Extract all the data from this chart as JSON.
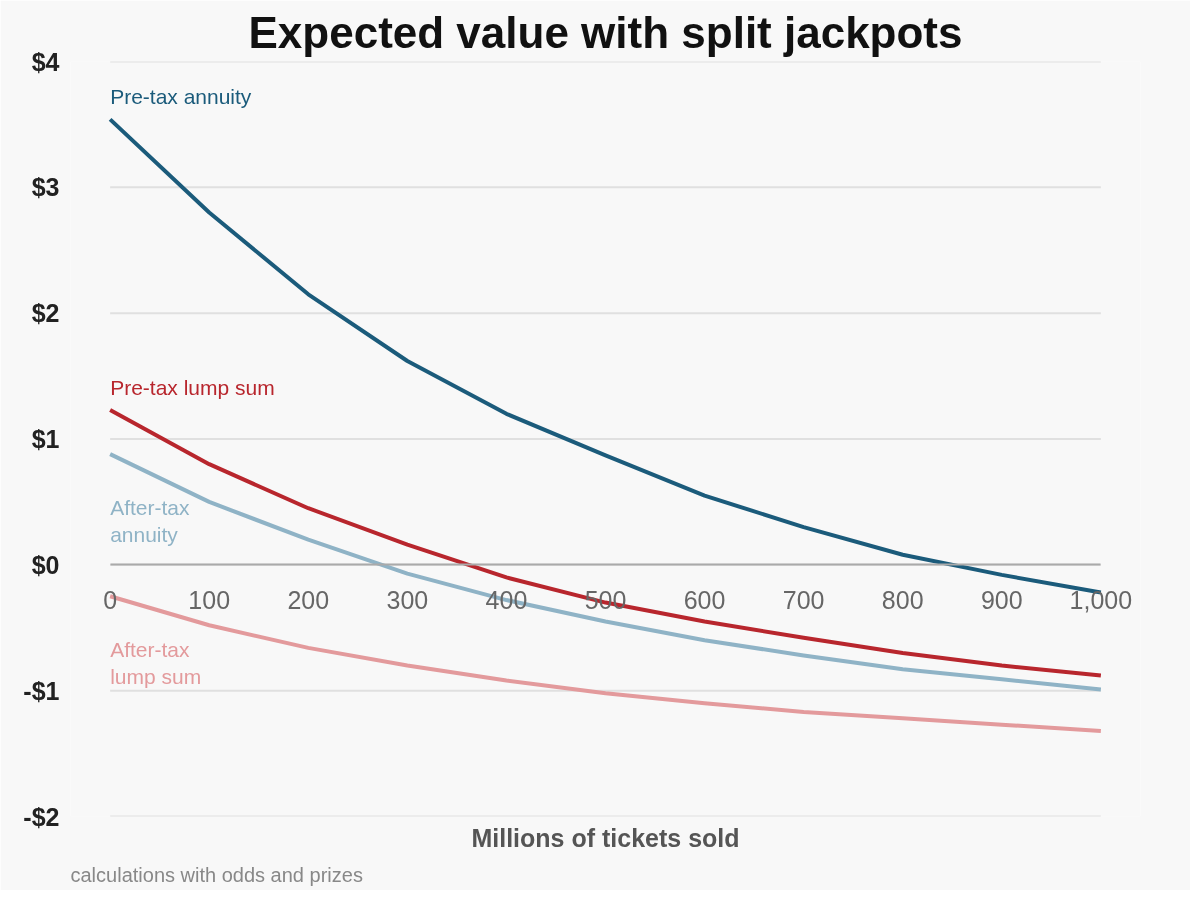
{
  "chart_data": {
    "type": "line",
    "title": "Expected value with split jackpots",
    "xlabel": "Millions of tickets sold",
    "x": [
      0,
      100,
      200,
      300,
      400,
      500,
      600,
      700,
      800,
      900,
      1000
    ],
    "series": [
      {
        "name": "Pre-tax annuity",
        "color": "#1b5b7b",
        "values": [
          3.54,
          2.8,
          2.15,
          1.62,
          1.2,
          0.87,
          0.55,
          0.3,
          0.08,
          -0.08,
          -0.22
        ]
      },
      {
        "name": "Pre-tax lump sum",
        "color": "#b8262d",
        "values": [
          1.23,
          0.8,
          0.45,
          0.16,
          -0.1,
          -0.3,
          -0.45,
          -0.58,
          -0.7,
          -0.8,
          -0.88
        ]
      },
      {
        "name": "After-tax\nannuity",
        "color": "#8fb3c6",
        "values": [
          0.88,
          0.5,
          0.2,
          -0.07,
          -0.28,
          -0.45,
          -0.6,
          -0.72,
          -0.83,
          -0.91,
          -0.99
        ]
      },
      {
        "name": "After-tax\nlump sum",
        "color": "#e39a9c",
        "values": [
          -0.25,
          -0.48,
          -0.66,
          -0.8,
          -0.92,
          -1.02,
          -1.1,
          -1.17,
          -1.22,
          -1.27,
          -1.32
        ]
      }
    ],
    "xlim": [
      0,
      1000
    ],
    "ylim": [
      -2,
      4
    ],
    "xticks": [
      0,
      100,
      200,
      300,
      400,
      500,
      600,
      700,
      800,
      900,
      {
        "value": 1000,
        "label": "1,000"
      }
    ],
    "yticks": [
      {
        "value": -2,
        "label": "-$2"
      },
      {
        "value": -1,
        "label": "-$1"
      },
      {
        "value": 0,
        "label": "$0"
      },
      {
        "value": 1,
        "label": "$1"
      },
      {
        "value": 2,
        "label": "$2"
      },
      {
        "value": 3,
        "label": "$3"
      },
      {
        "value": 4,
        "label": "$4"
      }
    ],
    "grid": "y",
    "legend": false,
    "marker": "none",
    "line_style": "solid",
    "annotations": [
      "calculations with odds and prizes"
    ]
  }
}
